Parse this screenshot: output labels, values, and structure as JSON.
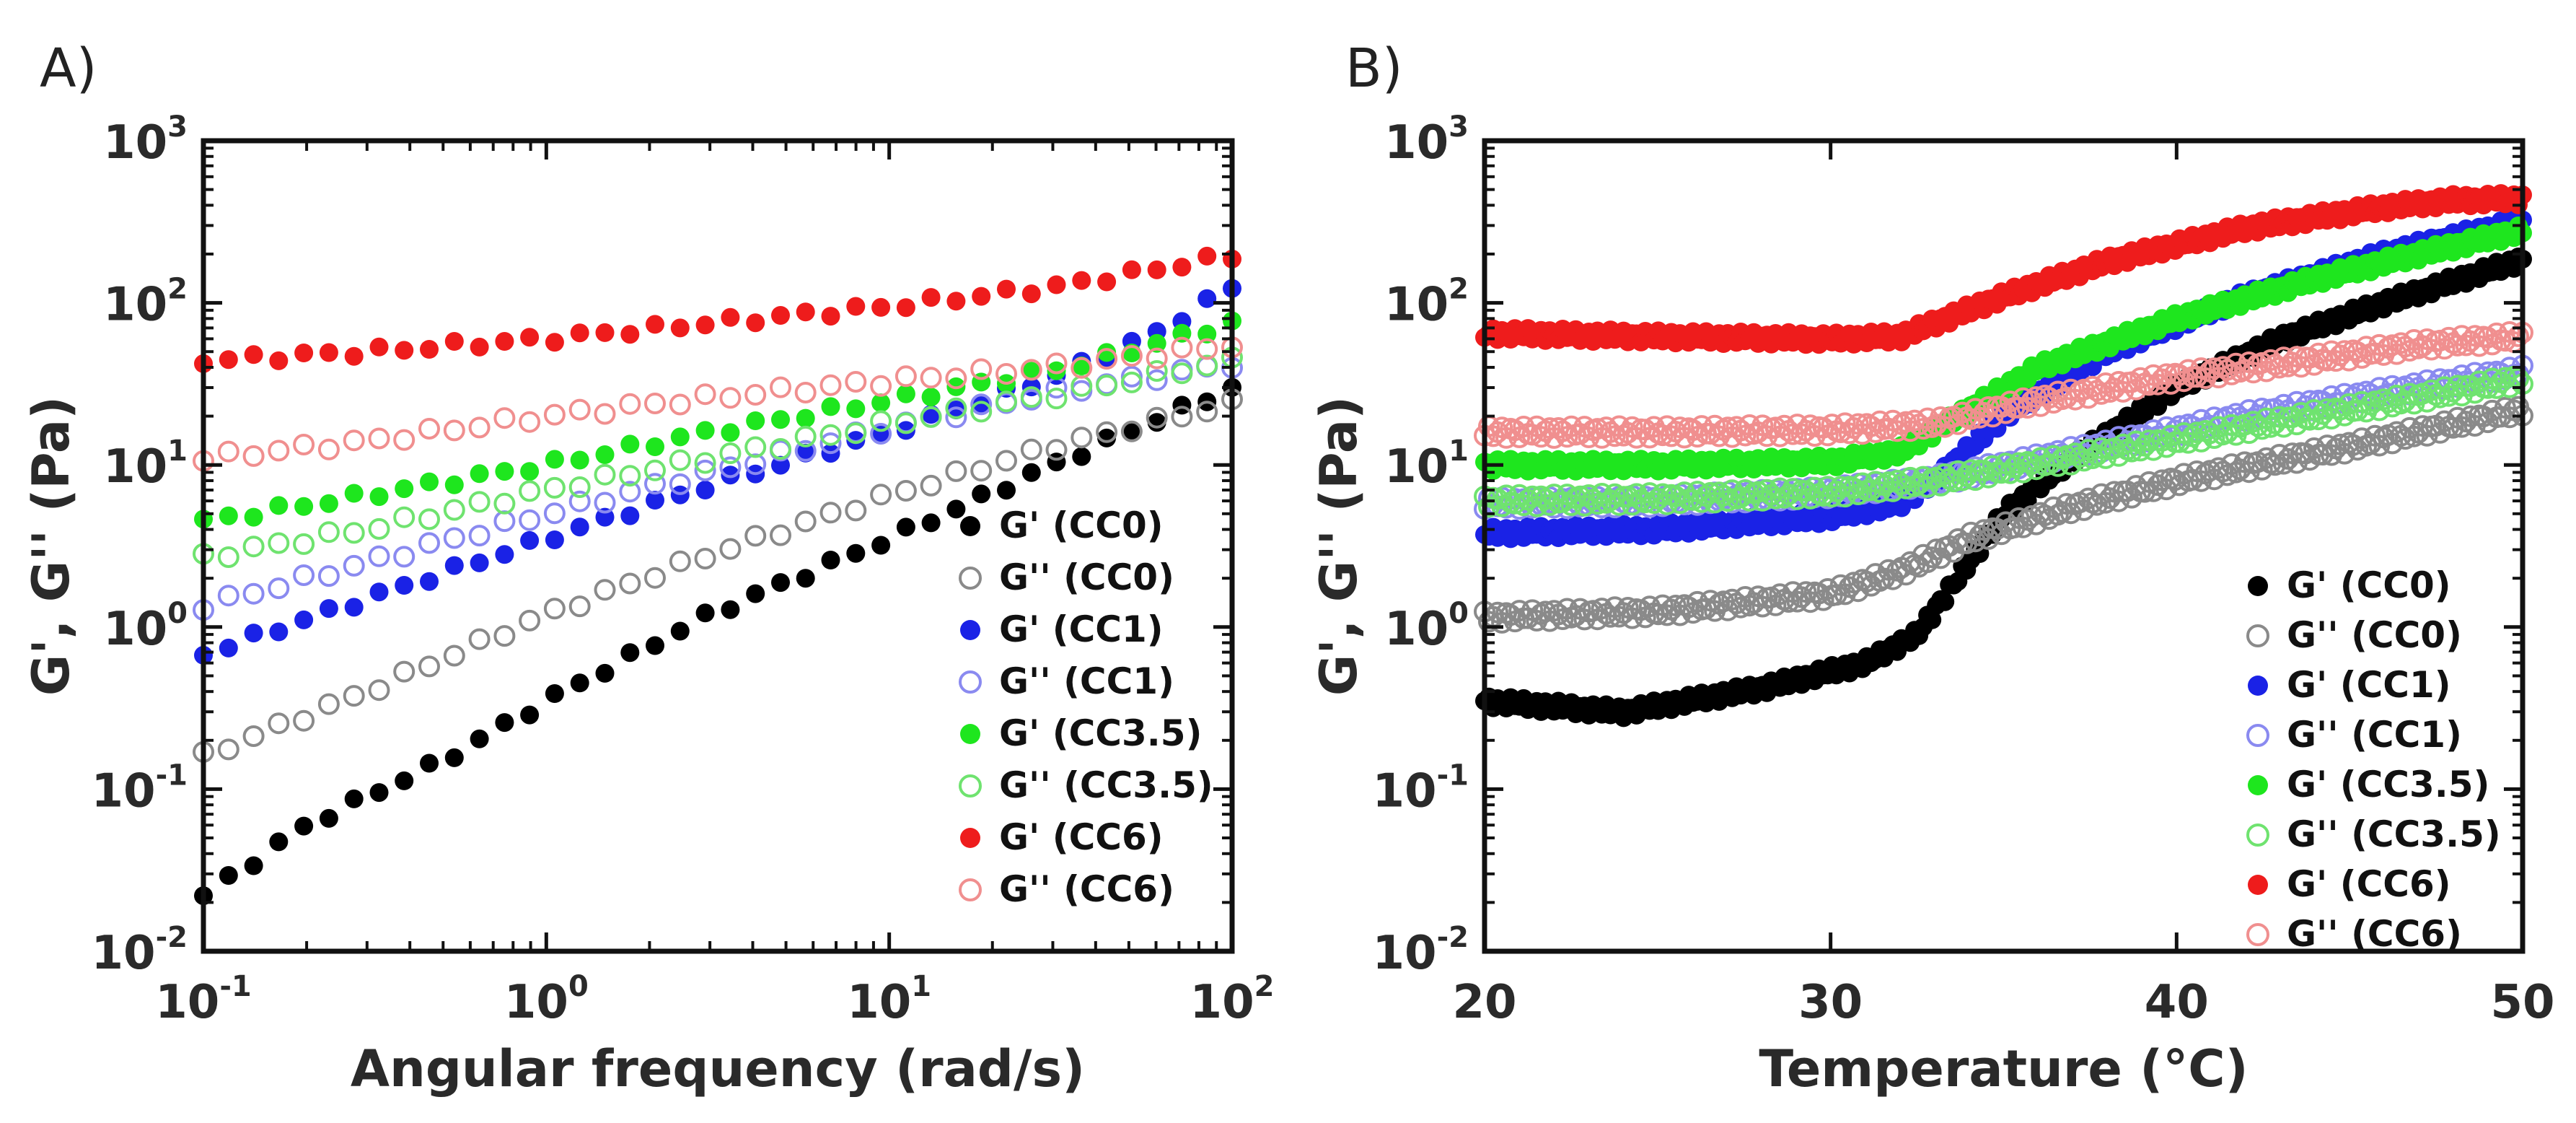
{
  "chart_data": [
    {
      "type": "scatter",
      "panel_label": "A)",
      "xlabel": "Angular frequency (rad/s)",
      "ylabel": "G', G'' (Pa)",
      "xscale": "log",
      "yscale": "log",
      "xlim": [
        0.1,
        100
      ],
      "ylim": [
        0.01,
        1000
      ],
      "x_ticks": [
        {
          "value": 0.1,
          "base": "10",
          "exp": "-1"
        },
        {
          "value": 1,
          "base": "10",
          "exp": "0"
        },
        {
          "value": 10,
          "base": "10",
          "exp": "1"
        },
        {
          "value": 100,
          "base": "10",
          "exp": "2"
        }
      ],
      "y_ticks": [
        {
          "value": 0.01,
          "base": "10",
          "exp": "-2"
        },
        {
          "value": 0.1,
          "base": "10",
          "exp": "-1"
        },
        {
          "value": 1,
          "base": "10",
          "exp": "0"
        },
        {
          "value": 10,
          "base": "10",
          "exp": "1"
        },
        {
          "value": 100,
          "base": "10",
          "exp": "2"
        },
        {
          "value": 1000,
          "base": "10",
          "exp": "3"
        }
      ],
      "legend_position": "lower-right",
      "series": [
        {
          "name": "G' (CC0)",
          "color": "#000000",
          "filled": true,
          "anchors": [
            [
              0.1,
              0.022
            ],
            [
              0.2,
              0.06
            ],
            [
              0.5,
              0.15
            ],
            [
              1,
              0.35
            ],
            [
              3,
              1.2
            ],
            [
              10,
              3.5
            ],
            [
              30,
              10
            ],
            [
              100,
              30
            ]
          ]
        },
        {
          "name": "G'' (CC0)",
          "color": "#8a8a8a",
          "filled": false,
          "anchors": [
            [
              0.1,
              0.16
            ],
            [
              0.3,
              0.4
            ],
            [
              1,
              1.2
            ],
            [
              3,
              2.8
            ],
            [
              10,
              6.5
            ],
            [
              30,
              13
            ],
            [
              100,
              24
            ]
          ]
        },
        {
          "name": "G' (CC1)",
          "color": "#1a22e6",
          "filled": true,
          "anchors": [
            [
              0.1,
              0.68
            ],
            [
              0.3,
              1.5
            ],
            [
              1,
              3.5
            ],
            [
              3,
              7.5
            ],
            [
              10,
              16
            ],
            [
              30,
              35
            ],
            [
              60,
              65
            ],
            [
              100,
              125
            ]
          ]
        },
        {
          "name": "G'' (CC1)",
          "color": "#8a8af0",
          "filled": false,
          "anchors": [
            [
              0.1,
              1.35
            ],
            [
              0.3,
              2.5
            ],
            [
              1,
              5
            ],
            [
              3,
              9
            ],
            [
              10,
              17
            ],
            [
              30,
              28
            ],
            [
              100,
              42
            ]
          ]
        },
        {
          "name": "G' (CC3.5)",
          "color": "#1ee61e",
          "filled": true,
          "anchors": [
            [
              0.1,
              4.5
            ],
            [
              0.3,
              6.5
            ],
            [
              1,
              10
            ],
            [
              3,
              16
            ],
            [
              10,
              25
            ],
            [
              30,
              38
            ],
            [
              100,
              75
            ]
          ]
        },
        {
          "name": "G'' (CC3.5)",
          "color": "#6fe36f",
          "filled": false,
          "anchors": [
            [
              0.1,
              2.7
            ],
            [
              0.3,
              4
            ],
            [
              1,
              7
            ],
            [
              3,
              11
            ],
            [
              10,
              18
            ],
            [
              30,
              27
            ],
            [
              100,
              44
            ]
          ]
        },
        {
          "name": "G' (CC6)",
          "color": "#ee1c1c",
          "filled": true,
          "anchors": [
            [
              0.1,
              44
            ],
            [
              0.3,
              50
            ],
            [
              1,
              60
            ],
            [
              3,
              75
            ],
            [
              10,
              95
            ],
            [
              30,
              125
            ],
            [
              100,
              195
            ]
          ]
        },
        {
          "name": "G'' (CC6)",
          "color": "#f08f8f",
          "filled": false,
          "anchors": [
            [
              0.1,
              11
            ],
            [
              0.3,
              14
            ],
            [
              1,
              20
            ],
            [
              3,
              26
            ],
            [
              10,
              33
            ],
            [
              30,
              40
            ],
            [
              100,
              55
            ]
          ]
        }
      ]
    },
    {
      "type": "scatter",
      "panel_label": "B)",
      "xlabel": "Temperature (°C)",
      "ylabel": "G', G'' (Pa)",
      "xscale": "linear",
      "yscale": "log",
      "xlim": [
        20,
        50
      ],
      "ylim": [
        0.01,
        1000
      ],
      "x_ticks": [
        {
          "value": 20,
          "label": "20"
        },
        {
          "value": 30,
          "label": "30"
        },
        {
          "value": 40,
          "label": "40"
        },
        {
          "value": 50,
          "label": "50"
        }
      ],
      "y_ticks": [
        {
          "value": 0.01,
          "base": "10",
          "exp": "-2"
        },
        {
          "value": 0.1,
          "base": "10",
          "exp": "-1"
        },
        {
          "value": 1,
          "base": "10",
          "exp": "0"
        },
        {
          "value": 10,
          "base": "10",
          "exp": "1"
        },
        {
          "value": 100,
          "base": "10",
          "exp": "2"
        },
        {
          "value": 1000,
          "base": "10",
          "exp": "3"
        }
      ],
      "legend_position": "lower-right",
      "series": [
        {
          "name": "G'  (CC0)",
          "color": "#000000",
          "filled": true,
          "anchors": [
            [
              20,
              0.35
            ],
            [
              24,
              0.3
            ],
            [
              28,
              0.42
            ],
            [
              31,
              0.6
            ],
            [
              32.5,
              0.9
            ],
            [
              34,
              2.5
            ],
            [
              35,
              5
            ],
            [
              37,
              11
            ],
            [
              40,
              30
            ],
            [
              43,
              60
            ],
            [
              46,
              100
            ],
            [
              50,
              185
            ]
          ]
        },
        {
          "name": "G'' (CC0)",
          "color": "#8a8a8a",
          "filled": false,
          "anchors": [
            [
              20,
              1.15
            ],
            [
              25,
              1.25
            ],
            [
              30,
              1.6
            ],
            [
              32,
              2.2
            ],
            [
              34,
              3.5
            ],
            [
              37,
              5.5
            ],
            [
              40,
              8
            ],
            [
              45,
              13
            ],
            [
              50,
              22
            ]
          ]
        },
        {
          "name": "G'  (CC1)",
          "color": "#1a22e6",
          "filled": true,
          "anchors": [
            [
              20,
              3.8
            ],
            [
              25,
              4
            ],
            [
              30,
              4.8
            ],
            [
              32,
              5.8
            ],
            [
              33,
              8
            ],
            [
              35,
              20
            ],
            [
              38,
              50
            ],
            [
              42,
              110
            ],
            [
              46,
              200
            ],
            [
              50,
              320
            ]
          ]
        },
        {
          "name": "G'' (CC1)",
          "color": "#8a8af0",
          "filled": false,
          "anchors": [
            [
              20,
              5.8
            ],
            [
              25,
              6
            ],
            [
              30,
              6.8
            ],
            [
              33,
              8
            ],
            [
              37,
              12
            ],
            [
              42,
              20
            ],
            [
              46,
              28
            ],
            [
              50,
              38
            ]
          ]
        },
        {
          "name": "G'  (CC3.5)",
          "color": "#1ee61e",
          "filled": true,
          "anchors": [
            [
              20,
              10
            ],
            [
              25,
              10
            ],
            [
              30,
              10.5
            ],
            [
              32,
              12
            ],
            [
              34,
              22
            ],
            [
              36,
              40
            ],
            [
              40,
              80
            ],
            [
              44,
              140
            ],
            [
              47,
              200
            ],
            [
              50,
              280
            ]
          ]
        },
        {
          "name": "G'' (CC3.5)",
          "color": "#6fe36f",
          "filled": false,
          "anchors": [
            [
              20,
              6
            ],
            [
              25,
              6.2
            ],
            [
              30,
              6.8
            ],
            [
              33,
              8
            ],
            [
              37,
              11
            ],
            [
              42,
              17
            ],
            [
              46,
              24
            ],
            [
              50,
              34
            ]
          ]
        },
        {
          "name": "G'  (CC6)",
          "color": "#ee1c1c",
          "filled": true,
          "anchors": [
            [
              20,
              65
            ],
            [
              25,
              62
            ],
            [
              30,
              60
            ],
            [
              32,
              62
            ],
            [
              33,
              75
            ],
            [
              35,
              110
            ],
            [
              38,
              180
            ],
            [
              42,
              290
            ],
            [
              46,
              390
            ],
            [
              48,
              430
            ],
            [
              50,
              440
            ]
          ]
        },
        {
          "name": "G'' (CC6)",
          "color": "#f08f8f",
          "filled": false,
          "anchors": [
            [
              20,
              16
            ],
            [
              25,
              16
            ],
            [
              30,
              16.5
            ],
            [
              33,
              18
            ],
            [
              36,
              25
            ],
            [
              40,
              35
            ],
            [
              44,
              45
            ],
            [
              47,
              55
            ],
            [
              50,
              62
            ]
          ]
        }
      ]
    }
  ]
}
